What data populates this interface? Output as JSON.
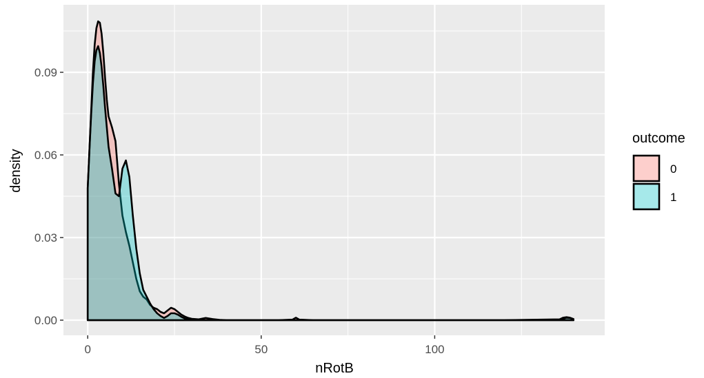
{
  "chart_data": {
    "type": "area",
    "title": "",
    "xlabel": "nRotB",
    "ylabel": "density",
    "xlim": [
      -7,
      149
    ],
    "ylim": [
      -0.0055,
      0.1145
    ],
    "x_ticks": [
      0,
      50,
      100
    ],
    "x_tick_labels": [
      "0",
      "50",
      "100"
    ],
    "y_ticks": [
      0.0,
      0.03,
      0.06,
      0.09
    ],
    "y_tick_labels": [
      "0.00",
      "0.03",
      "0.06",
      "0.09"
    ],
    "grid": true,
    "legend": {
      "title": "outcome",
      "position": "right"
    },
    "series": [
      {
        "name": "0",
        "color": "#f8766d",
        "fill_opacity": 0.35,
        "x": [
          0,
          0.5,
          1,
          1.5,
          2,
          2.5,
          3,
          3.5,
          4,
          4.5,
          5,
          5.5,
          6,
          7,
          8,
          9,
          10,
          11,
          12,
          13,
          14,
          15,
          16,
          17,
          18,
          19,
          20,
          21,
          22,
          23,
          24,
          25,
          26,
          27,
          28,
          29,
          30,
          32,
          34,
          36,
          38,
          40,
          50,
          55,
          59,
          60,
          61,
          65,
          80,
          100,
          120,
          136,
          137,
          138,
          139,
          140
        ],
        "values": [
          0.048,
          0.062,
          0.076,
          0.09,
          0.1,
          0.106,
          0.1085,
          0.108,
          0.104,
          0.097,
          0.088,
          0.08,
          0.074,
          0.07,
          0.065,
          0.0495,
          0.038,
          0.032,
          0.027,
          0.021,
          0.015,
          0.0105,
          0.0085,
          0.0075,
          0.0055,
          0.0045,
          0.004,
          0.003,
          0.0025,
          0.0035,
          0.0045,
          0.004,
          0.003,
          0.002,
          0.0013,
          0.0008,
          0.0005,
          0.0003,
          0.0008,
          0.0004,
          0.0001,
          0.0,
          0.0,
          0.0,
          0.0002,
          0.0009,
          0.0002,
          0.0,
          0.0,
          0.0,
          0.0,
          0.0003,
          0.0009,
          0.0011,
          0.0009,
          0.0004
        ]
      },
      {
        "name": "1",
        "color": "#00bfc4",
        "fill_opacity": 0.35,
        "x": [
          0,
          0.5,
          1,
          1.5,
          2,
          2.5,
          3,
          3.5,
          4,
          4.5,
          5,
          5.5,
          6,
          7,
          8,
          9,
          10,
          11,
          12,
          13,
          14,
          15,
          16,
          17,
          18,
          19,
          20,
          21,
          22,
          23,
          24,
          25,
          26,
          27,
          28,
          29,
          30,
          32,
          34,
          36,
          38,
          40,
          50,
          80,
          100,
          120,
          136,
          137,
          138,
          139,
          140
        ],
        "values": [
          0.048,
          0.062,
          0.075,
          0.086,
          0.094,
          0.098,
          0.0995,
          0.097,
          0.092,
          0.085,
          0.077,
          0.07,
          0.063,
          0.055,
          0.046,
          0.045,
          0.055,
          0.058,
          0.052,
          0.038,
          0.026,
          0.017,
          0.011,
          0.0085,
          0.006,
          0.004,
          0.0025,
          0.0015,
          0.0008,
          0.0015,
          0.0025,
          0.0025,
          0.002,
          0.0012,
          0.0006,
          0.0003,
          0.0002,
          0.0001,
          0.0,
          0.0,
          0.0,
          0.0,
          0.0,
          0.0,
          0.0,
          0.0,
          0.0,
          0.0005,
          0.0009,
          0.0008,
          0.0004
        ]
      }
    ]
  }
}
